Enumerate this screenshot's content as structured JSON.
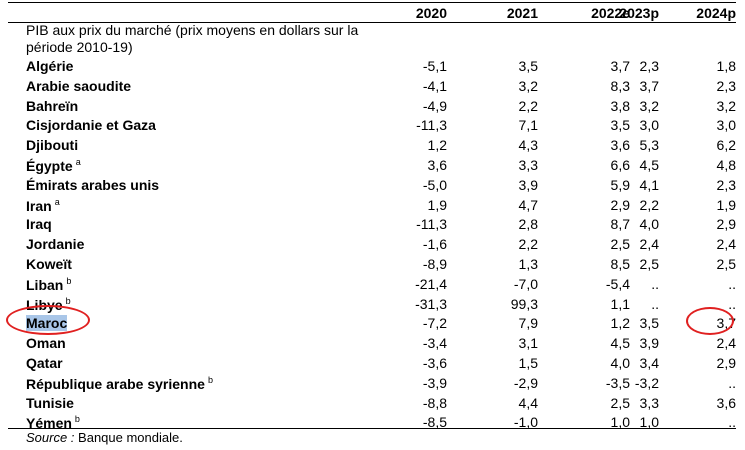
{
  "columns": [
    "2020",
    "2021",
    "2022e",
    "2023p",
    "2024p"
  ],
  "subtitle": "PIB aux prix du marché (prix moyens en dollars sur la période 2010-19)",
  "rows": [
    {
      "name": "Algérie",
      "sup": "",
      "values": [
        "-5,1",
        "3,5",
        "3,7",
        "2,3",
        "1,8"
      ]
    },
    {
      "name": "Arabie saoudite",
      "sup": "",
      "values": [
        "-4,1",
        "3,2",
        "8,3",
        "3,7",
        "2,3"
      ]
    },
    {
      "name": "Bahreïn",
      "sup": "",
      "values": [
        "-4,9",
        "2,2",
        "3,8",
        "3,2",
        "3,2"
      ]
    },
    {
      "name": "Cisjordanie et Gaza",
      "sup": "",
      "values": [
        "-11,3",
        "7,1",
        "3,5",
        "3,0",
        "3,0"
      ]
    },
    {
      "name": "Djibouti",
      "sup": "",
      "values": [
        "1,2",
        "4,3",
        "3,6",
        "5,3",
        "6,2"
      ]
    },
    {
      "name": "Égypte",
      "sup": "a",
      "values": [
        "3,6",
        "3,3",
        "6,6",
        "4,5",
        "4,8"
      ]
    },
    {
      "name": "Émirats arabes unis",
      "sup": "",
      "values": [
        "-5,0",
        "3,9",
        "5,9",
        "4,1",
        "2,3"
      ]
    },
    {
      "name": "Iran",
      "sup": "a",
      "values": [
        "1,9",
        "4,7",
        "2,9",
        "2,2",
        "1,9"
      ]
    },
    {
      "name": "Iraq",
      "sup": "",
      "values": [
        "-11,3",
        "2,8",
        "8,7",
        "4,0",
        "2,9"
      ]
    },
    {
      "name": "Jordanie",
      "sup": "",
      "values": [
        "-1,6",
        "2,2",
        "2,5",
        "2,4",
        "2,4"
      ]
    },
    {
      "name": "Koweït",
      "sup": "",
      "values": [
        "-8,9",
        "1,3",
        "8,5",
        "2,5",
        "2,5"
      ]
    },
    {
      "name": "Liban",
      "sup": "b",
      "values": [
        "-21,4",
        "-7,0",
        "-5,4",
        "..",
        ".."
      ]
    },
    {
      "name": "Libye",
      "sup": "b",
      "values": [
        "-31,3",
        "99,3",
        "1,1",
        "..",
        ".."
      ]
    },
    {
      "name": "Maroc",
      "sup": "",
      "values": [
        "-7,2",
        "7,9",
        "1,2",
        "3,5",
        "3,7"
      ]
    },
    {
      "name": "Oman",
      "sup": "",
      "values": [
        "-3,4",
        "3,1",
        "4,5",
        "3,9",
        "2,4"
      ]
    },
    {
      "name": "Qatar",
      "sup": "",
      "values": [
        "-3,6",
        "1,5",
        "4,0",
        "3,4",
        "2,9"
      ]
    },
    {
      "name": "République arabe syrienne",
      "sup": "b",
      "values": [
        "-3,9",
        "-2,9",
        "-3,5",
        "-3,2",
        ".."
      ]
    },
    {
      "name": "Tunisie",
      "sup": "",
      "values": [
        "-8,8",
        "4,4",
        "2,5",
        "3,3",
        "3,6"
      ]
    },
    {
      "name": "Yémen",
      "sup": "b",
      "values": [
        "-8,5",
        "-1,0",
        "1,0",
        "1,0",
        ".."
      ]
    }
  ],
  "source": {
    "label": "Source :",
    "text": "Banque mondiale."
  },
  "colors": {
    "highlight": "#a9c6e8",
    "circle": "#e02020"
  }
}
